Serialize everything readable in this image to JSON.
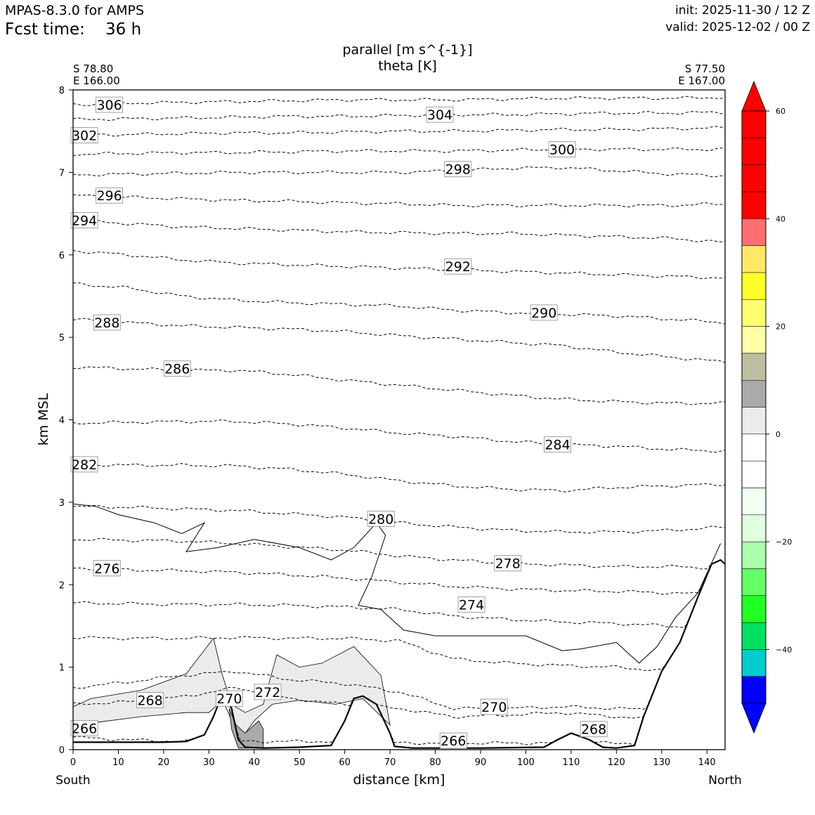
{
  "header": {
    "model": "MPAS-8.3.0 for AMPS",
    "fcst_label": "Fcst time:",
    "fcst_value": "36 h",
    "init": "init: 2025-11-30 / 12 Z",
    "valid": "valid: 2025-12-02 / 00 Z"
  },
  "chart_data": {
    "type": "cross-section contour",
    "title_line1": "parallel [m s^{-1}]",
    "title_line2": "theta [K]",
    "xlabel": "distance [km]",
    "ylabel": "km MSL",
    "xlim": [
      0,
      144
    ],
    "ylim": [
      0,
      8
    ],
    "x_ticks": [
      0,
      10,
      20,
      30,
      40,
      50,
      60,
      70,
      80,
      90,
      100,
      110,
      120,
      130,
      140
    ],
    "y_ticks": [
      0,
      1,
      2,
      3,
      4,
      5,
      6,
      7,
      8
    ],
    "endpoints": {
      "left_lat": "S 78.80",
      "left_lon": "E 166.00",
      "right_lat": "S 77.50",
      "right_lon": "E 167.00",
      "left_dir": "South",
      "right_dir": "North"
    },
    "theta_contours": [
      {
        "level": 266,
        "heights": [
          0.15,
          0.12,
          0.1,
          0.1,
          0.1,
          0.1,
          0.08,
          0.08,
          0.08,
          0.08,
          0.08,
          0.08,
          0.08
        ]
      },
      {
        "level": 268,
        "heights": [
          0.55,
          0.58,
          0.64,
          0.75,
          0.62,
          0.55,
          0.5,
          0.4,
          0.42,
          0.45,
          0.4,
          0.35,
          0.25
        ]
      },
      {
        "level": 270,
        "heights": [
          0.75,
          0.82,
          0.9,
          0.95,
          0.85,
          0.8,
          0.7,
          0.5,
          0.5,
          0.52,
          0.5,
          0.48,
          0.4
        ]
      },
      {
        "level": 272,
        "heights": [
          1.36,
          1.35,
          1.35,
          1.36,
          1.35,
          1.35,
          1.32,
          1.1,
          1.05,
          1.02,
          1.0,
          0.95,
          0.8
        ]
      },
      {
        "level": 274,
        "heights": [
          1.78,
          1.77,
          1.76,
          1.76,
          1.75,
          1.73,
          1.7,
          1.62,
          1.58,
          1.55,
          1.53,
          1.5,
          1.45
        ]
      },
      {
        "level": 276,
        "heights": [
          2.2,
          2.18,
          2.17,
          2.15,
          2.12,
          2.08,
          2.03,
          1.98,
          1.95,
          1.93,
          1.92,
          1.9,
          1.88
        ]
      },
      {
        "level": 278,
        "heights": [
          2.55,
          2.54,
          2.53,
          2.5,
          2.46,
          2.42,
          2.35,
          2.3,
          2.26,
          2.24,
          2.22,
          2.22,
          2.2
        ]
      },
      {
        "level": 280,
        "heights": [
          2.95,
          2.94,
          2.92,
          2.9,
          2.86,
          2.82,
          2.75,
          2.7,
          2.66,
          2.64,
          2.64,
          2.66,
          2.7
        ]
      },
      {
        "level": 282,
        "heights": [
          3.46,
          3.45,
          3.45,
          3.44,
          3.4,
          3.34,
          3.26,
          3.2,
          3.16,
          3.14,
          3.18,
          3.2,
          3.22
        ]
      },
      {
        "level": 284,
        "heights": [
          3.96,
          3.97,
          3.98,
          3.98,
          3.95,
          3.9,
          3.84,
          3.8,
          3.74,
          3.7,
          3.68,
          3.64,
          3.62
        ]
      },
      {
        "level": 286,
        "heights": [
          4.64,
          4.62,
          4.6,
          4.6,
          4.55,
          4.48,
          4.42,
          4.36,
          4.3,
          4.25,
          4.22,
          4.2,
          4.2
        ]
      },
      {
        "level": 288,
        "heights": [
          5.22,
          5.18,
          5.14,
          5.12,
          5.1,
          5.07,
          5.02,
          4.98,
          4.94,
          4.9,
          4.82,
          4.76,
          4.7
        ]
      },
      {
        "level": 290,
        "heights": [
          5.65,
          5.6,
          5.5,
          5.45,
          5.42,
          5.4,
          5.38,
          5.33,
          5.3,
          5.28,
          5.26,
          5.22,
          5.18
        ]
      },
      {
        "level": 292,
        "heights": [
          6.05,
          6.0,
          5.94,
          5.9,
          5.88,
          5.86,
          5.84,
          5.82,
          5.8,
          5.78,
          5.76,
          5.74,
          5.72
        ]
      },
      {
        "level": 294,
        "heights": [
          6.42,
          6.38,
          6.34,
          6.32,
          6.3,
          6.28,
          6.27,
          6.26,
          6.26,
          6.24,
          6.22,
          6.2,
          6.15
        ]
      },
      {
        "level": 296,
        "heights": [
          6.72,
          6.7,
          6.68,
          6.66,
          6.65,
          6.63,
          6.62,
          6.6,
          6.6,
          6.6,
          6.6,
          6.6,
          6.62
        ]
      },
      {
        "level": 298,
        "heights": [
          6.97,
          6.98,
          6.99,
          7.0,
          7.0,
          7.0,
          7.0,
          7.02,
          7.05,
          7.06,
          7.02,
          6.98,
          6.96
        ]
      },
      {
        "level": 300,
        "heights": [
          7.22,
          7.23,
          7.24,
          7.24,
          7.25,
          7.26,
          7.26,
          7.26,
          7.27,
          7.28,
          7.28,
          7.28,
          7.28
        ]
      },
      {
        "level": 302,
        "heights": [
          7.45,
          7.46,
          7.47,
          7.48,
          7.48,
          7.49,
          7.5,
          7.5,
          7.51,
          7.52,
          7.52,
          7.53,
          7.54
        ]
      },
      {
        "level": 304,
        "heights": [
          7.64,
          7.65,
          7.66,
          7.67,
          7.68,
          7.68,
          7.69,
          7.7,
          7.7,
          7.71,
          7.72,
          7.72,
          7.73
        ]
      },
      {
        "level": 306,
        "heights": [
          7.82,
          7.84,
          7.85,
          7.86,
          7.87,
          7.88,
          7.88,
          7.88,
          7.89,
          7.9,
          7.9,
          7.9,
          7.91
        ]
      }
    ],
    "theta_label_positions": [
      {
        "text": "306",
        "x": 8,
        "y": 7.82
      },
      {
        "text": "302",
        "x": 2.5,
        "y": 7.45
      },
      {
        "text": "304",
        "x": 81,
        "y": 7.7
      },
      {
        "text": "300",
        "x": 108,
        "y": 7.28
      },
      {
        "text": "298",
        "x": 85,
        "y": 7.04
      },
      {
        "text": "296",
        "x": 8,
        "y": 6.72
      },
      {
        "text": "294",
        "x": 2.5,
        "y": 6.42
      },
      {
        "text": "292",
        "x": 85,
        "y": 5.86
      },
      {
        "text": "290",
        "x": 104,
        "y": 5.3
      },
      {
        "text": "288",
        "x": 7.5,
        "y": 5.18
      },
      {
        "text": "286",
        "x": 23,
        "y": 4.62
      },
      {
        "text": "284",
        "x": 107,
        "y": 3.7
      },
      {
        "text": "282",
        "x": 2.5,
        "y": 3.46
      },
      {
        "text": "280",
        "x": 68,
        "y": 2.8
      },
      {
        "text": "278",
        "x": 96,
        "y": 2.26
      },
      {
        "text": "276",
        "x": 7.5,
        "y": 2.2
      },
      {
        "text": "274",
        "x": 88,
        "y": 1.76
      },
      {
        "text": "272",
        "x": 43,
        "y": 0.7
      },
      {
        "text": "270",
        "x": 34.5,
        "y": 0.62
      },
      {
        "text": "270",
        "x": 93,
        "y": 0.52
      },
      {
        "text": "268",
        "x": 17,
        "y": 0.6
      },
      {
        "text": "268",
        "x": 115,
        "y": 0.25
      },
      {
        "text": "266",
        "x": 2.5,
        "y": 0.26
      },
      {
        "text": "266",
        "x": 84,
        "y": 0.11
      }
    ],
    "terrain_height_km": {
      "x": [
        0,
        10,
        20,
        25,
        29,
        31,
        33,
        35,
        36.5,
        38,
        42,
        50,
        57,
        60,
        62,
        64,
        67,
        70,
        71,
        75,
        90,
        104,
        107,
        110,
        114,
        117,
        120,
        124,
        126,
        130,
        134,
        138,
        141,
        143,
        144
      ],
      "z": [
        0.09,
        0.09,
        0.09,
        0.1,
        0.18,
        0.4,
        0.68,
        0.5,
        0.12,
        0.03,
        0.02,
        0.03,
        0.05,
        0.35,
        0.62,
        0.65,
        0.55,
        0.2,
        0.04,
        0.02,
        0.02,
        0.03,
        0.12,
        0.2,
        0.12,
        0.03,
        0.02,
        0.05,
        0.4,
        0.95,
        1.3,
        1.85,
        2.25,
        2.3,
        2.25
      ]
    },
    "colorbar": {
      "ticks": [
        "60",
        "40",
        "20",
        "0",
        "−20",
        "−40"
      ],
      "tick_values": [
        60,
        40,
        20,
        0,
        -20,
        -40
      ],
      "range": [
        -50,
        60
      ],
      "step": 5,
      "colors": [
        "#0000ff",
        "#00cccc",
        "#00e060",
        "#22ff22",
        "#66ff66",
        "#aaffaa",
        "#dfffdf",
        "#f2fff2",
        "#ffffff",
        "#ffffff",
        "#ebebeb",
        "#aaaaaa",
        "#bdbd9f",
        "#ffffa8",
        "#ffff70",
        "#ffff28",
        "#ffe866",
        "#ff6f6f",
        "#ff0000"
      ]
    }
  }
}
